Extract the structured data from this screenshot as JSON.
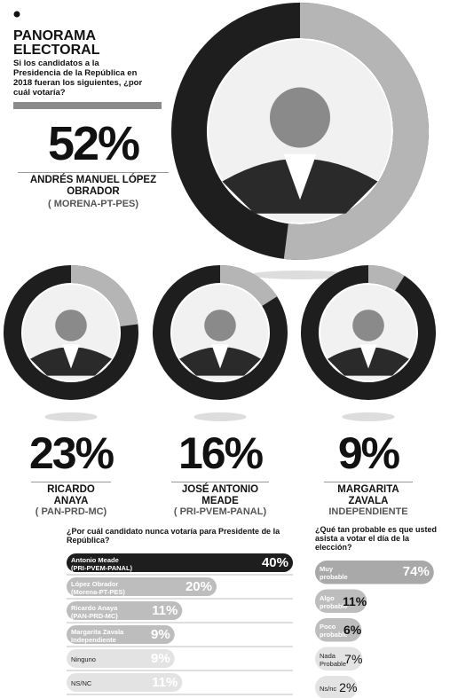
{
  "header": {
    "title": "PANORAMA ELECTORAL",
    "question": "Si los candidatos a la Presidencia de la República en 2018 fueran los siguientes, ¿por cuál votaría?"
  },
  "chart_data": [
    {
      "type": "donut",
      "values": [
        52
      ],
      "value_labels": [
        "52%"
      ],
      "name": "ANDRÉS MANUEL LÓPEZ OBRADOR",
      "party": "( MORENA-PT-PES)",
      "colors": [
        "#b5b5b5",
        "#1e1e1e"
      ]
    },
    {
      "type": "donut",
      "values": [
        23
      ],
      "value_labels": [
        "23%"
      ],
      "name": "RICARDO ANAYA",
      "party": "( PAN-PRD-MC)",
      "colors": [
        "#b5b5b5",
        "#1e1e1e"
      ]
    },
    {
      "type": "donut",
      "values": [
        16
      ],
      "value_labels": [
        "16%"
      ],
      "name": "JOSÉ ANTONIO MEADE",
      "party": "( PRI-PVEM-PANAL)",
      "colors": [
        "#b5b5b5",
        "#1e1e1e"
      ]
    },
    {
      "type": "donut",
      "values": [
        9
      ],
      "value_labels": [
        "9%"
      ],
      "name": "MARGARITA ZAVALA",
      "party": "INDEPENDIENTE",
      "colors": [
        "#b5b5b5",
        "#1e1e1e"
      ]
    },
    {
      "type": "bar",
      "title": "¿Por cuál candidato nunca votaría para Presidente de la República?",
      "categories": [
        "Antonio Meade\n(PRI-PVEM-PANAL)",
        "López Obrador\n(Morena-PT-PES)",
        "Ricardo Anaya\n(PAN-PRD-MC)",
        "Margarita Zavala\nIndependiente",
        "Ninguno",
        "NS/NC"
      ],
      "values": [
        40,
        20,
        11,
        9,
        9,
        11
      ],
      "value_labels": [
        "40%",
        "20%",
        "11%",
        "9%",
        "9%",
        "11%"
      ],
      "colors": [
        "#1e1e1e",
        "#bdbdbd",
        "#bdbdbd",
        "#bdbdbd",
        "#e3e3e3",
        "#e3e3e3"
      ]
    },
    {
      "type": "bar",
      "title": "¿Qué tan probable es que usted asista a votar el día de la elección?",
      "categories": [
        "Muy\nprobable",
        "Algo\nprobable",
        "Poco\nprobable",
        "Nada\nProbable",
        "Ns/nc"
      ],
      "values": [
        74,
        11,
        6,
        7,
        2
      ],
      "value_labels": [
        "74%",
        "11%",
        "6%",
        "7%",
        "2%"
      ],
      "colors": [
        "#a9a9a9",
        "#bdbdbd",
        "#bdbdbd",
        "#e3e3e3",
        "#e3e3e3"
      ]
    }
  ]
}
